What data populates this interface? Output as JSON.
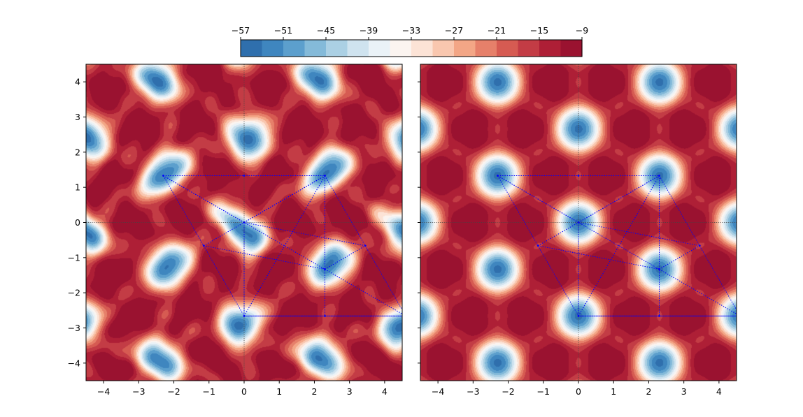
{
  "chart_data": [
    {
      "type": "heatmap",
      "panel": "left",
      "title": "",
      "xlabel": "",
      "ylabel": "",
      "xlim": [
        -4.5,
        4.5
      ],
      "ylim": [
        -4.5,
        4.5
      ],
      "xticks": [
        "−4",
        "−3",
        "−2",
        "−1",
        "0",
        "1",
        "2",
        "3",
        "4"
      ],
      "xtick_values": [
        -4,
        -3,
        -2,
        -1,
        0,
        1,
        2,
        3,
        4
      ],
      "yticks": [
        "−4",
        "−3",
        "−2",
        "−1",
        "0",
        "1",
        "2",
        "3",
        "4"
      ],
      "ytick_values": [
        -4,
        -3,
        -2,
        -1,
        0,
        1,
        2,
        3,
        4
      ],
      "ytick_labels_shown": true,
      "colormap": "RdBu_r",
      "field": "distorted hexagonal potential",
      "minima": [
        [
          -2.3,
          1.33
        ],
        [
          2.3,
          1.33
        ],
        [
          0,
          -2.66
        ],
        [
          4.6,
          -2.66
        ],
        [
          -4.6,
          -2.66
        ]
      ],
      "reference_lines": [
        [
          0,
          "horizontal"
        ],
        [
          0,
          "vertical"
        ]
      ],
      "overlay_points": [
        [
          0,
          0
        ],
        [
          -2.3,
          1.33
        ],
        [
          2.3,
          1.33
        ],
        [
          0,
          -2.66
        ],
        [
          2.3,
          -1.33
        ],
        [
          4.6,
          -2.66
        ],
        [
          -1.15,
          -0.66
        ],
        [
          3.45,
          -0.66
        ],
        [
          0,
          1.33
        ],
        [
          2.3,
          -2.66
        ]
      ],
      "overlay_color": "#0000ff"
    },
    {
      "type": "heatmap",
      "panel": "right",
      "title": "",
      "xlabel": "",
      "ylabel": "",
      "xlim": [
        -4.5,
        4.5
      ],
      "ylim": [
        -4.5,
        4.5
      ],
      "xticks": [
        "−4",
        "−3",
        "−2",
        "−1",
        "0",
        "1",
        "2",
        "3",
        "4"
      ],
      "xtick_values": [
        -4,
        -3,
        -2,
        -1,
        0,
        1,
        2,
        3,
        4
      ],
      "ytick_values": [
        -4,
        -3,
        -2,
        -1,
        0,
        1,
        2,
        3,
        4
      ],
      "ytick_labels_shown": false,
      "colormap": "RdBu_r",
      "field": "symmetric hexagonal potential",
      "minima": [
        [
          -2.3,
          1.33
        ],
        [
          2.3,
          1.33
        ],
        [
          0,
          -2.66
        ],
        [
          4.6,
          -2.66
        ],
        [
          -4.6,
          -2.66
        ]
      ],
      "reference_lines": [
        [
          0,
          "horizontal"
        ],
        [
          0,
          "vertical"
        ]
      ],
      "overlay_points": [
        [
          0,
          0
        ],
        [
          -2.3,
          1.33
        ],
        [
          2.3,
          1.33
        ],
        [
          0,
          -2.66
        ],
        [
          2.3,
          -1.33
        ],
        [
          4.6,
          -2.66
        ],
        [
          -1.15,
          -0.66
        ],
        [
          3.45,
          -0.66
        ],
        [
          0,
          1.33
        ],
        [
          2.3,
          -2.66
        ]
      ],
      "overlay_color": "#0000ff"
    }
  ],
  "colorbar": {
    "orientation": "horizontal",
    "placement": "top-center",
    "range": [
      -57,
      -9
    ],
    "levels": [
      -57,
      -54,
      -51,
      -48,
      -45,
      -42,
      -39,
      -36,
      -33,
      -30,
      -27,
      -24,
      -21,
      -18,
      -15,
      -12,
      -9
    ],
    "tick_values": [
      -57,
      -51,
      -45,
      -39,
      -33,
      -27,
      -21,
      -15,
      -9
    ],
    "tick_labels": [
      "−57",
      "−51",
      "−45",
      "−39",
      "−33",
      "−27",
      "−21",
      "−15",
      "−9"
    ],
    "colors": [
      "#2f6fad",
      "#3f86bf",
      "#5c9fcd",
      "#84bad9",
      "#abd0e4",
      "#cfe3ef",
      "#eaf2f7",
      "#fbf4f0",
      "#fce3d6",
      "#f9c7af",
      "#f3a686",
      "#e6806a",
      "#d65b52",
      "#c33c45",
      "#ae1f36",
      "#9a1230"
    ]
  }
}
